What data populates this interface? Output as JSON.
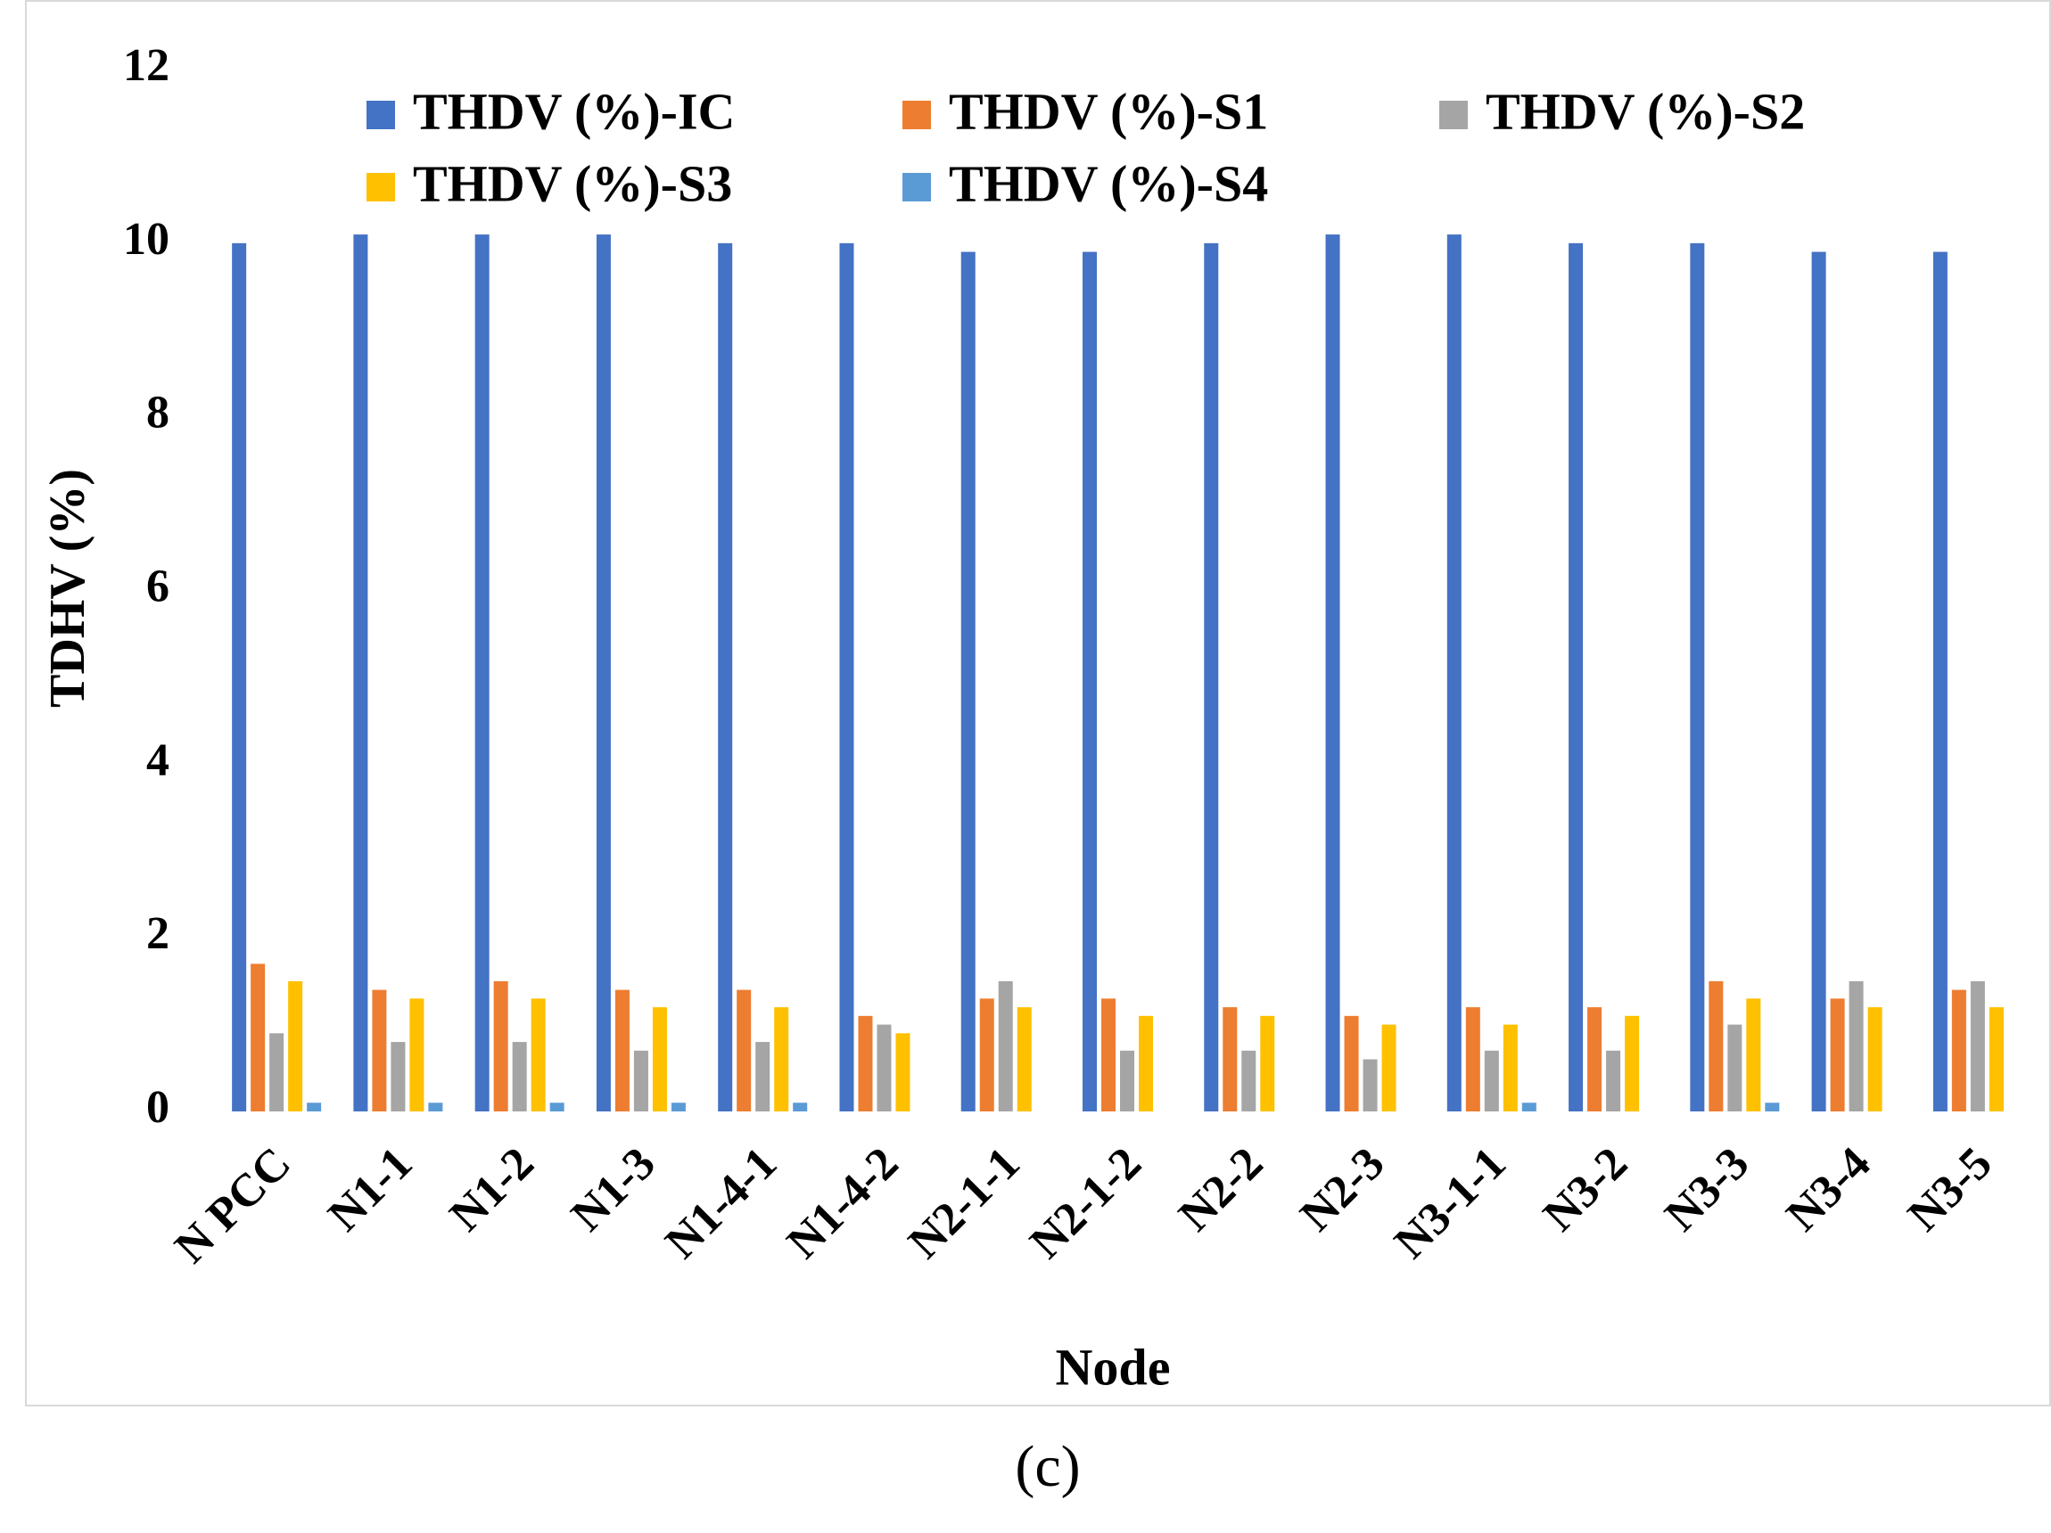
{
  "chart_data": {
    "type": "bar",
    "y_label": "TDHV (%)",
    "x_label": "Node",
    "caption": "(c)",
    "categories": [
      "N PCC",
      "N1-1",
      "N1-2",
      "N1-3",
      "N1-4-1",
      "N1-4-2",
      "N2-1-1",
      "N2-1-2",
      "N2-2",
      "N2-3",
      "N3-1-1",
      "N3-2",
      "N3-3",
      "N3-4",
      "N3-5"
    ],
    "series": [
      {
        "name": "THDV (%)-IC",
        "color": "#4472c4",
        "values": [
          10,
          10.1,
          10.1,
          10.1,
          10,
          10,
          9.9,
          9.9,
          10,
          10.1,
          10.1,
          10,
          10,
          9.9,
          9.9
        ]
      },
      {
        "name": "THDV (%)-S1",
        "color": "#ed7d31",
        "values": [
          1.7,
          1.4,
          1.5,
          1.4,
          1.4,
          1.1,
          1.3,
          1.3,
          1.2,
          1.1,
          1.2,
          1.2,
          1.5,
          1.3,
          1.4
        ]
      },
      {
        "name": "THDV (%)-S2",
        "color": "#a5a5a5",
        "values": [
          0.9,
          0.8,
          0.8,
          0.7,
          0.8,
          1.0,
          1.5,
          0.7,
          0.7,
          0.6,
          0.7,
          0.7,
          1.0,
          1.5,
          1.5
        ]
      },
      {
        "name": "THDV (%)-S3",
        "color": "#ffc000",
        "values": [
          1.5,
          1.3,
          1.3,
          1.2,
          1.2,
          0.9,
          1.2,
          1.1,
          1.1,
          1.0,
          1.0,
          1.1,
          1.3,
          1.2,
          1.2
        ]
      },
      {
        "name": "THDV (%)-S4",
        "color": "#5b9bd5",
        "values": [
          0.1,
          0.1,
          0.1,
          0.1,
          0.1,
          0,
          0,
          0,
          0,
          0,
          0.1,
          0,
          0.1,
          0,
          0
        ]
      }
    ],
    "ylim": [
      0,
      12
    ],
    "yticks": [
      0,
      2,
      4,
      6,
      8,
      10,
      12
    ],
    "grid": false,
    "legend": "top"
  }
}
